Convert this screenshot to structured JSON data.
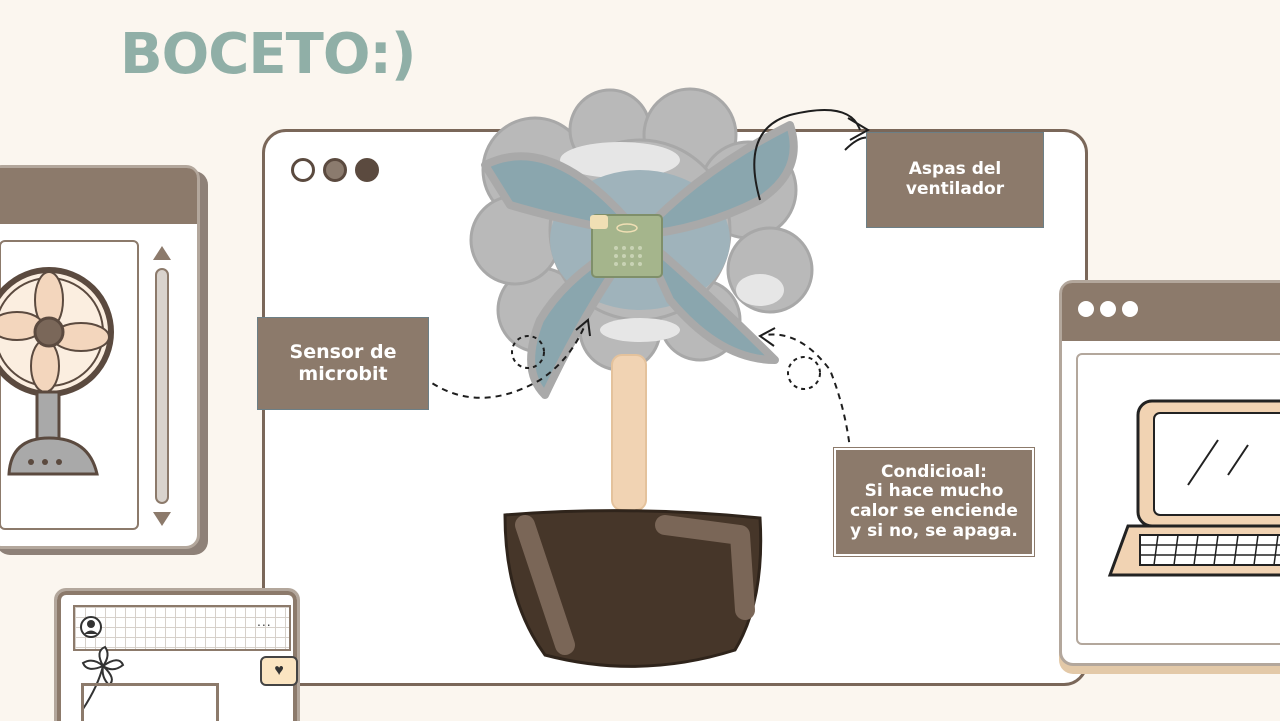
{
  "title": "BOCETO:)",
  "labels": {
    "aspas": "Aspas del ventilador",
    "sensor": "Sensor de microbit",
    "conditional_lines": [
      "Condicioal:",
      "Si hace mucho",
      "calor se enciende",
      "y si no, se apaga."
    ]
  },
  "windows": {
    "main": {
      "dots": 3
    },
    "right": {
      "dots": 3
    },
    "bottom_left": {
      "menu": "..."
    }
  },
  "icons": {
    "fan": "desk-fan-icon",
    "laptop": "laptop-icon",
    "heart": "heart-icon",
    "user": "user-icon",
    "flower": "flower-icon"
  },
  "colors": {
    "title": "#90afa7",
    "label_bg": "#8c7a6b",
    "window_border": "#7a6759",
    "background": "#fbf6ef",
    "pot": "#463629",
    "blade": "#8aa6ae",
    "cloud": "#bcbcbc"
  }
}
